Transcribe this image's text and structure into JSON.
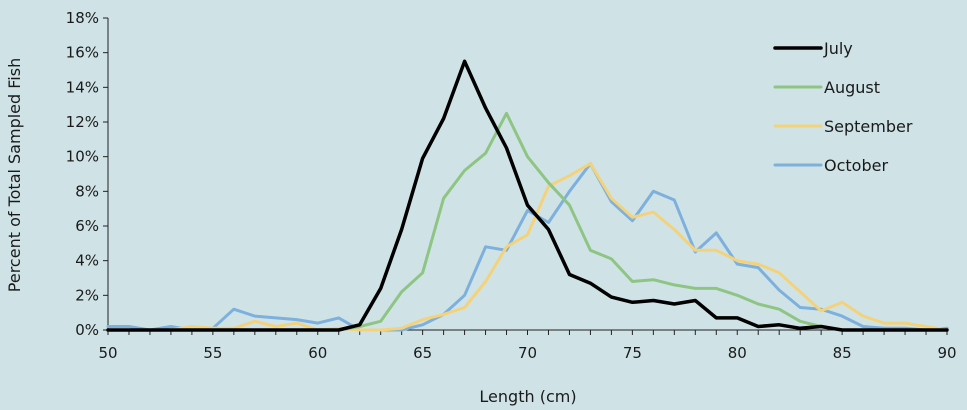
{
  "chart_data": {
    "type": "line",
    "title": "",
    "xlabel": "Length (cm)",
    "ylabel": "Percent of Total Sampled Fish",
    "xlim": [
      50,
      90
    ],
    "ylim": [
      0,
      18
    ],
    "x_ticks": [
      50,
      55,
      60,
      65,
      70,
      75,
      80,
      85,
      90
    ],
    "x_tick_labels": [
      "50",
      "55",
      "60",
      "65",
      "70",
      "75",
      "80",
      "85",
      "90"
    ],
    "y_ticks": [
      0,
      2,
      4,
      6,
      8,
      10,
      12,
      14,
      16,
      18
    ],
    "y_tick_labels": [
      "0%",
      "2%",
      "4%",
      "6%",
      "8%",
      "10%",
      "12%",
      "14%",
      "16%",
      "18%"
    ],
    "y_unit": "percent",
    "grid": false,
    "legend_position": "top-right",
    "x": [
      50,
      51,
      52,
      53,
      54,
      55,
      56,
      57,
      58,
      59,
      60,
      61,
      62,
      63,
      64,
      65,
      66,
      67,
      68,
      69,
      70,
      71,
      72,
      73,
      74,
      75,
      76,
      77,
      78,
      79,
      80,
      81,
      82,
      83,
      84,
      85,
      86,
      87,
      88,
      89,
      90
    ],
    "series": [
      {
        "name": "July",
        "color": "#000000",
        "values": [
          0,
          0,
          0,
          0,
          0,
          0,
          0,
          0,
          0,
          0,
          0,
          0,
          0.3,
          2.4,
          5.8,
          9.9,
          12.2,
          15.5,
          12.8,
          10.5,
          7.2,
          5.8,
          3.2,
          2.7,
          1.9,
          1.6,
          1.7,
          1.5,
          1.7,
          0.7,
          0.7,
          0.2,
          0.3,
          0.1,
          0.2,
          0,
          0,
          0,
          0,
          0,
          0
        ]
      },
      {
        "name": "August",
        "color": "#8ec583",
        "values": [
          0,
          0,
          0,
          0,
          0,
          0,
          0,
          0,
          0,
          0,
          0,
          0,
          0.2,
          0.5,
          2.2,
          3.3,
          7.6,
          9.2,
          10.2,
          12.5,
          10,
          8.5,
          7.2,
          4.6,
          4.1,
          2.8,
          2.9,
          2.6,
          2.4,
          2.4,
          2,
          1.5,
          1.2,
          0.5,
          0.2,
          0,
          0,
          0,
          0,
          0,
          0
        ]
      },
      {
        "name": "September",
        "color": "#f4d27a",
        "values": [
          0,
          0,
          0,
          0,
          0.2,
          0.1,
          0.1,
          0.5,
          0.2,
          0.4,
          0,
          0.1,
          0,
          0,
          0.1,
          0.6,
          0.9,
          1.3,
          2.8,
          4.8,
          5.5,
          8.3,
          8.9,
          9.6,
          7.6,
          6.5,
          6.8,
          5.8,
          4.6,
          4.6,
          4,
          3.8,
          3.3,
          2.2,
          1.1,
          1.6,
          0.8,
          0.4,
          0.4,
          0.2,
          0
        ]
      },
      {
        "name": "October",
        "color": "#7db0dc",
        "values": [
          0.2,
          0.2,
          0,
          0.2,
          0,
          0.1,
          1.2,
          0.8,
          0.7,
          0.6,
          0.4,
          0.7,
          0,
          0,
          0,
          0.3,
          0.9,
          2.0,
          4.8,
          4.6,
          6.9,
          6.2,
          8.0,
          9.6,
          7.4,
          6.3,
          8.0,
          7.5,
          4.5,
          5.6,
          3.8,
          3.6,
          2.3,
          1.3,
          1.2,
          0.8,
          0.2,
          0.1,
          0.1,
          0,
          0.1
        ]
      }
    ]
  }
}
